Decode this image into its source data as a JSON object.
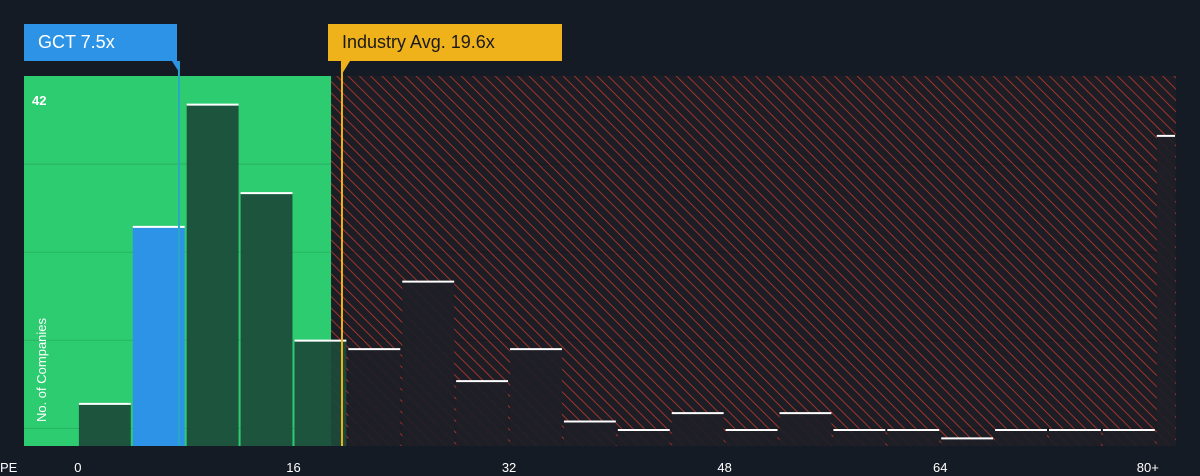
{
  "chart_data": {
    "type": "bar",
    "title": "",
    "xlabel": "PE",
    "ylabel": "No. of Companies",
    "x_tick_labels": [
      "0",
      "16",
      "32",
      "48",
      "64",
      "80+"
    ],
    "x_tick_values": [
      0,
      16,
      32,
      48,
      64,
      80
    ],
    "y_tick_labels": [
      "42"
    ],
    "ylim": [
      0,
      42
    ],
    "xlim": [
      -4,
      81.5
    ],
    "bin_width": 4,
    "bins": [
      {
        "from": -4,
        "to": 0,
        "count": 0
      },
      {
        "from": 0,
        "to": 4,
        "count": 5
      },
      {
        "from": 4,
        "to": 8,
        "count": 26
      },
      {
        "from": 8,
        "to": 12,
        "count": 40.5
      },
      {
        "from": 12,
        "to": 16,
        "count": 30
      },
      {
        "from": 16,
        "to": 20,
        "count": 12.5
      },
      {
        "from": 20,
        "to": 24,
        "count": 11.5
      },
      {
        "from": 24,
        "to": 28,
        "count": 19.5
      },
      {
        "from": 28,
        "to": 32,
        "count": 7.7
      },
      {
        "from": 32,
        "to": 36,
        "count": 11.5
      },
      {
        "from": 36,
        "to": 40,
        "count": 2.9
      },
      {
        "from": 40,
        "to": 44,
        "count": 1.9
      },
      {
        "from": 44,
        "to": 48,
        "count": 3.9
      },
      {
        "from": 48,
        "to": 52,
        "count": 1.9
      },
      {
        "from": 52,
        "to": 56,
        "count": 3.9
      },
      {
        "from": 56,
        "to": 60,
        "count": 1.9
      },
      {
        "from": 60,
        "to": 64,
        "count": 1.9
      },
      {
        "from": 64,
        "to": 68,
        "count": 0.9
      },
      {
        "from": 68,
        "to": 72,
        "count": 1.9
      },
      {
        "from": 72,
        "to": 76,
        "count": 1.9
      },
      {
        "from": 76,
        "to": 80,
        "count": 1.9
      },
      {
        "from": 80,
        "to": 81.5,
        "count": 36.8
      }
    ],
    "highlight_bin_index": 2,
    "subject": {
      "label": "GCT 7.5x",
      "value": 7.5
    },
    "industry_avg": {
      "label": "Industry Avg. 19.6x",
      "value": 19.6
    },
    "fair_zone_end": 18.8,
    "grid": true,
    "colors": {
      "background": "#151b24",
      "fair_zone": "#2ecc71",
      "subject_bar": "#2d93e6",
      "bar_dark": "#1c4a3a",
      "bar_on_red": "#1e1e26",
      "hatch_red": "#c0392b",
      "industry_line": "#f0b21a",
      "bar_top": "#ffffff"
    }
  }
}
